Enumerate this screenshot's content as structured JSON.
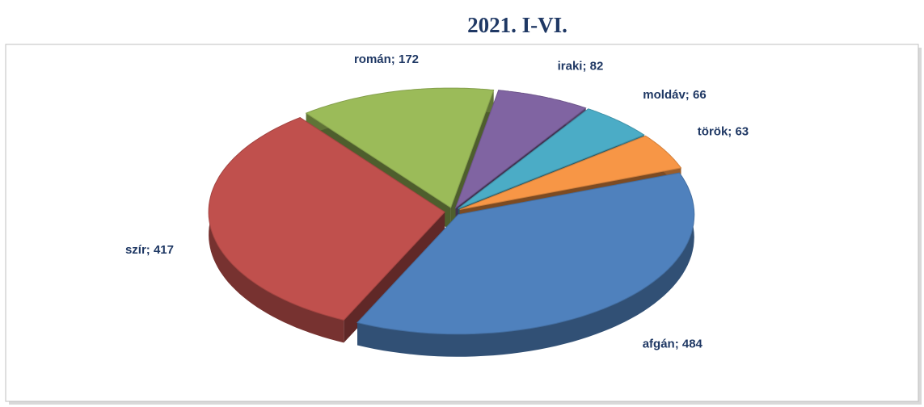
{
  "chart_data": {
    "type": "pie3d",
    "title": "2021. I-VI.",
    "values": [
      484,
      417,
      172,
      82,
      66,
      63
    ],
    "value_labels": [
      "afgán; 484",
      "szír; 417",
      "román; 172",
      "iraki; 82",
      "moldáv; 66",
      "török; 63"
    ],
    "colors": [
      "#4f81bd",
      "#c0504d",
      "#9bbb59",
      "#8064a2",
      "#4bacc6",
      "#f79646"
    ]
  }
}
